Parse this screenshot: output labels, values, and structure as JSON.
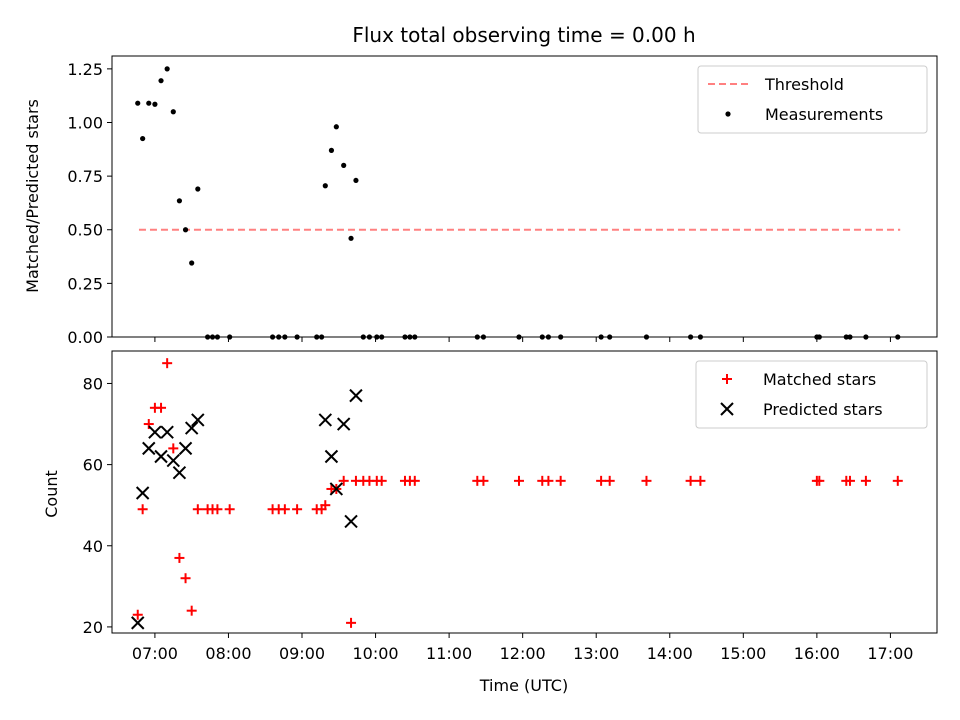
{
  "chart_data": [
    {
      "type": "scatter",
      "title": "Flux total observing time = 0.00 h",
      "xlabel": "",
      "ylabel": "Matched/Predicted stars",
      "xlim": [
        "06:25",
        "17:38"
      ],
      "ylim": [
        0,
        1.31
      ],
      "y_ticks": [
        "0.00",
        "0.25",
        "0.50",
        "0.75",
        "1.00",
        "1.25"
      ],
      "grid": false,
      "legend_position": "top-right",
      "threshold": {
        "name": "Threshold",
        "value": 0.5,
        "x_start": "06:47",
        "x_end": "17:08",
        "color": "#ff8080",
        "style": "dashed"
      },
      "series": [
        {
          "name": "Measurements",
          "marker": "dot",
          "color": "#000000",
          "points": [
            [
              "06:46",
              1.09
            ],
            [
              "06:50",
              0.925
            ],
            [
              "06:55",
              1.09
            ],
            [
              "07:00",
              1.085
            ],
            [
              "07:05",
              1.195
            ],
            [
              "07:10",
              1.25
            ],
            [
              "07:15",
              1.05
            ],
            [
              "07:20",
              0.635
            ],
            [
              "07:25",
              0.5
            ],
            [
              "07:30",
              0.345
            ],
            [
              "07:35",
              0.69
            ],
            [
              "07:43",
              0.0
            ],
            [
              "07:47",
              0.0
            ],
            [
              "07:51",
              0.0
            ],
            [
              "08:01",
              0.0
            ],
            [
              "08:36",
              0.0
            ],
            [
              "08:41",
              0.0
            ],
            [
              "08:46",
              0.0
            ],
            [
              "08:56",
              0.0
            ],
            [
              "09:12",
              0.0
            ],
            [
              "09:16",
              0.0
            ],
            [
              "09:19",
              0.705
            ],
            [
              "09:24",
              0.87
            ],
            [
              "09:28",
              0.98
            ],
            [
              "09:34",
              0.8
            ],
            [
              "09:40",
              0.46
            ],
            [
              "09:44",
              0.73
            ],
            [
              "09:50",
              0.0
            ],
            [
              "09:55",
              0.0
            ],
            [
              "10:01",
              0.0
            ],
            [
              "10:05",
              0.0
            ],
            [
              "10:24",
              0.0
            ],
            [
              "10:28",
              0.0
            ],
            [
              "10:32",
              0.0
            ],
            [
              "11:23",
              0.0
            ],
            [
              "11:28",
              0.0
            ],
            [
              "11:57",
              0.0
            ],
            [
              "12:16",
              0.0
            ],
            [
              "12:21",
              0.0
            ],
            [
              "12:31",
              0.0
            ],
            [
              "13:04",
              0.0
            ],
            [
              "13:11",
              0.0
            ],
            [
              "13:41",
              0.0
            ],
            [
              "14:17",
              0.0
            ],
            [
              "14:25",
              0.0
            ],
            [
              "16:00",
              0.0
            ],
            [
              "16:02",
              0.0
            ],
            [
              "16:24",
              0.0
            ],
            [
              "16:27",
              0.0
            ],
            [
              "16:40",
              0.0
            ],
            [
              "17:06",
              0.0
            ]
          ]
        }
      ]
    },
    {
      "type": "scatter",
      "title": "",
      "xlabel": "Time (UTC)",
      "ylabel": "Count",
      "xlim": [
        "06:25",
        "17:38"
      ],
      "ylim": [
        18.5,
        88
      ],
      "x_ticks": [
        "07:00",
        "08:00",
        "09:00",
        "10:00",
        "11:00",
        "12:00",
        "13:00",
        "14:00",
        "15:00",
        "16:00",
        "17:00"
      ],
      "y_ticks": [
        "20",
        "40",
        "60",
        "80"
      ],
      "grid": false,
      "legend_position": "top-right",
      "series": [
        {
          "name": "Matched stars",
          "marker": "plus",
          "color": "#ff0000",
          "points": [
            [
              "06:46",
              23
            ],
            [
              "06:50",
              49
            ],
            [
              "06:55",
              70
            ],
            [
              "07:00",
              74
            ],
            [
              "07:05",
              74
            ],
            [
              "07:10",
              85
            ],
            [
              "07:15",
              64
            ],
            [
              "07:20",
              37
            ],
            [
              "07:25",
              32
            ],
            [
              "07:30",
              24
            ],
            [
              "07:35",
              49
            ],
            [
              "07:43",
              49
            ],
            [
              "07:47",
              49
            ],
            [
              "07:51",
              49
            ],
            [
              "08:01",
              49
            ],
            [
              "08:36",
              49
            ],
            [
              "08:41",
              49
            ],
            [
              "08:46",
              49
            ],
            [
              "08:56",
              49
            ],
            [
              "09:12",
              49
            ],
            [
              "09:16",
              49
            ],
            [
              "09:19",
              50
            ],
            [
              "09:24",
              54
            ],
            [
              "09:28",
              54
            ],
            [
              "09:34",
              56
            ],
            [
              "09:40",
              21
            ],
            [
              "09:44",
              56
            ],
            [
              "09:50",
              56
            ],
            [
              "09:55",
              56
            ],
            [
              "10:01",
              56
            ],
            [
              "10:05",
              56
            ],
            [
              "10:24",
              56
            ],
            [
              "10:28",
              56
            ],
            [
              "10:32",
              56
            ],
            [
              "11:23",
              56
            ],
            [
              "11:28",
              56
            ],
            [
              "11:57",
              56
            ],
            [
              "12:16",
              56
            ],
            [
              "12:21",
              56
            ],
            [
              "12:31",
              56
            ],
            [
              "13:04",
              56
            ],
            [
              "13:11",
              56
            ],
            [
              "13:41",
              56
            ],
            [
              "14:17",
              56
            ],
            [
              "14:25",
              56
            ],
            [
              "16:00",
              56
            ],
            [
              "16:02",
              56
            ],
            [
              "16:24",
              56
            ],
            [
              "16:27",
              56
            ],
            [
              "16:40",
              56
            ],
            [
              "17:06",
              56
            ]
          ]
        },
        {
          "name": "Predicted stars",
          "marker": "x",
          "color": "#000000",
          "points": [
            [
              "06:46",
              21
            ],
            [
              "06:50",
              53
            ],
            [
              "06:55",
              64
            ],
            [
              "07:00",
              68
            ],
            [
              "07:05",
              62
            ],
            [
              "07:10",
              68
            ],
            [
              "07:15",
              61
            ],
            [
              "07:20",
              58
            ],
            [
              "07:25",
              64
            ],
            [
              "07:30",
              69
            ],
            [
              "07:35",
              71
            ],
            [
              "09:19",
              71
            ],
            [
              "09:24",
              62
            ],
            [
              "09:28",
              54
            ],
            [
              "09:34",
              70
            ],
            [
              "09:40",
              46
            ],
            [
              "09:44",
              77
            ]
          ]
        }
      ]
    }
  ]
}
